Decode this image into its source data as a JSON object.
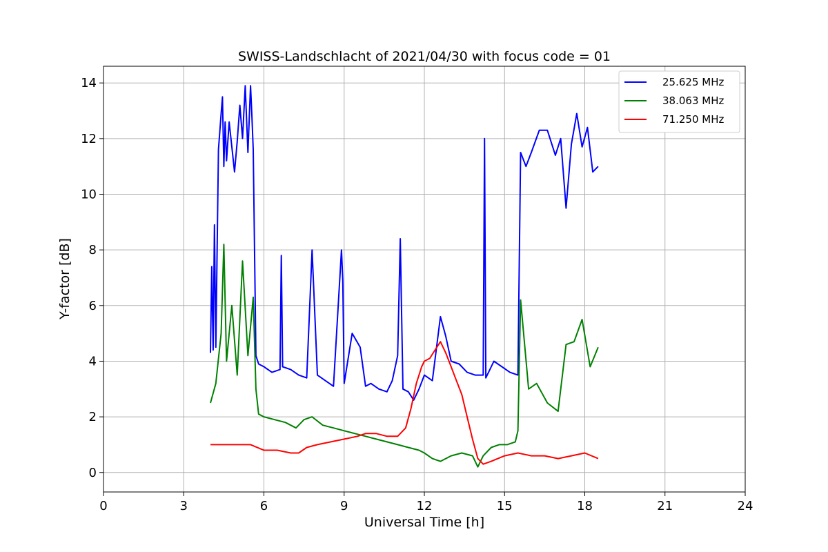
{
  "chart_data": {
    "type": "line",
    "title": "SWISS-Landschlacht of 2021/04/30 with focus code = 01",
    "xlabel": "Universal Time [h]",
    "ylabel": "Y-factor [dB]",
    "xlim": [
      0,
      24
    ],
    "ylim": [
      -0.7,
      14.6
    ],
    "xticks": [
      0,
      3,
      6,
      9,
      12,
      15,
      18,
      21,
      24
    ],
    "yticks": [
      0,
      2,
      4,
      6,
      8,
      10,
      12,
      14
    ],
    "grid": true,
    "legend_position": "top-right",
    "series": [
      {
        "name": "25.625 MHz",
        "color": "#0000ff",
        "x": [
          4.0,
          4.05,
          4.1,
          4.15,
          4.2,
          4.3,
          4.4,
          4.45,
          4.5,
          4.55,
          4.6,
          4.7,
          4.8,
          4.9,
          5.0,
          5.1,
          5.2,
          5.3,
          5.4,
          5.5,
          5.55,
          5.6,
          5.7,
          5.8,
          6.0,
          6.3,
          6.6,
          6.65,
          6.7,
          7.0,
          7.3,
          7.6,
          7.8,
          8.0,
          8.3,
          8.6,
          8.9,
          8.95,
          9.0,
          9.3,
          9.6,
          9.8,
          10.0,
          10.3,
          10.6,
          10.8,
          11.0,
          11.1,
          11.2,
          11.4,
          11.6,
          11.8,
          12.0,
          12.3,
          12.6,
          12.8,
          13.0,
          13.3,
          13.6,
          13.9,
          14.2,
          14.25,
          14.3,
          14.6,
          14.9,
          15.2,
          15.5,
          15.6,
          15.8,
          16.0,
          16.3,
          16.6,
          16.9,
          17.1,
          17.3,
          17.5,
          17.7,
          17.9,
          18.1,
          18.3,
          18.5
        ],
        "values": [
          4.3,
          7.4,
          4.4,
          8.9,
          4.5,
          11.6,
          12.9,
          13.5,
          11.0,
          12.6,
          11.2,
          12.6,
          11.7,
          10.8,
          11.9,
          13.2,
          12.0,
          13.9,
          11.5,
          13.9,
          12.8,
          11.6,
          4.2,
          3.9,
          3.8,
          3.6,
          3.7,
          7.8,
          3.8,
          3.7,
          3.5,
          3.4,
          8.0,
          3.5,
          3.3,
          3.1,
          8.0,
          6.9,
          3.2,
          5.0,
          4.5,
          3.1,
          3.2,
          3.0,
          2.9,
          3.3,
          4.2,
          8.4,
          3.0,
          2.9,
          2.6,
          3.0,
          3.5,
          3.3,
          5.6,
          4.9,
          4.0,
          3.9,
          3.6,
          3.5,
          3.5,
          12.0,
          3.4,
          4.0,
          3.8,
          3.6,
          3.5,
          11.5,
          11.0,
          11.5,
          12.3,
          12.3,
          11.4,
          12.0,
          9.5,
          11.8,
          12.9,
          11.7,
          12.4,
          10.8,
          11.0
        ]
      },
      {
        "name": "38.063 MHz",
        "color": "#008000",
        "x": [
          4.0,
          4.2,
          4.4,
          4.5,
          4.6,
          4.8,
          5.0,
          5.2,
          5.4,
          5.6,
          5.7,
          5.8,
          6.0,
          6.4,
          6.8,
          7.2,
          7.5,
          7.8,
          8.2,
          8.6,
          9.0,
          9.4,
          9.8,
          10.2,
          10.6,
          11.0,
          11.4,
          11.8,
          12.0,
          12.3,
          12.6,
          13.0,
          13.4,
          13.8,
          14.0,
          14.2,
          14.5,
          14.8,
          15.1,
          15.4,
          15.5,
          15.6,
          15.9,
          16.2,
          16.6,
          17.0,
          17.3,
          17.6,
          17.9,
          18.2,
          18.5
        ],
        "values": [
          2.5,
          3.2,
          5.0,
          8.2,
          4.0,
          6.0,
          3.5,
          7.6,
          4.2,
          6.3,
          3.0,
          2.1,
          2.0,
          1.9,
          1.8,
          1.6,
          1.9,
          2.0,
          1.7,
          1.6,
          1.5,
          1.4,
          1.3,
          1.2,
          1.1,
          1.0,
          0.9,
          0.8,
          0.7,
          0.5,
          0.4,
          0.6,
          0.7,
          0.6,
          0.2,
          0.6,
          0.9,
          1.0,
          1.0,
          1.1,
          1.5,
          6.2,
          3.0,
          3.2,
          2.5,
          2.2,
          4.6,
          4.7,
          5.5,
          3.8,
          4.5
        ]
      },
      {
        "name": "71.250 MHz",
        "color": "#ff0000",
        "x": [
          4.0,
          4.3,
          4.6,
          5.0,
          5.5,
          6.0,
          6.5,
          7.0,
          7.3,
          7.6,
          8.0,
          8.5,
          9.0,
          9.5,
          9.8,
          10.2,
          10.6,
          11.0,
          11.3,
          11.5,
          11.7,
          11.9,
          12.0,
          12.2,
          12.4,
          12.6,
          12.8,
          13.0,
          13.2,
          13.4,
          13.6,
          13.8,
          14.0,
          14.2,
          14.5,
          15.0,
          15.5,
          16.0,
          16.5,
          17.0,
          17.5,
          18.0,
          18.5
        ],
        "values": [
          1.0,
          1.0,
          1.0,
          1.0,
          1.0,
          0.8,
          0.8,
          0.7,
          0.7,
          0.9,
          1.0,
          1.1,
          1.2,
          1.3,
          1.4,
          1.4,
          1.3,
          1.3,
          1.6,
          2.3,
          3.2,
          3.8,
          4.0,
          4.1,
          4.4,
          4.7,
          4.3,
          3.8,
          3.3,
          2.8,
          2.0,
          1.2,
          0.5,
          0.3,
          0.4,
          0.6,
          0.7,
          0.6,
          0.6,
          0.5,
          0.6,
          0.7,
          0.5
        ]
      }
    ]
  }
}
